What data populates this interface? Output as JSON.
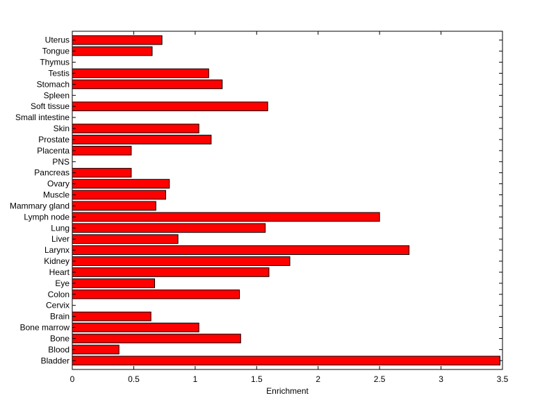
{
  "chart_data": {
    "type": "bar",
    "orientation": "horizontal",
    "categories": [
      "Bladder",
      "Blood",
      "Bone",
      "Bone marrow",
      "Brain",
      "Cervix",
      "Colon",
      "Eye",
      "Heart",
      "Kidney",
      "Larynx",
      "Liver",
      "Lung",
      "Lymph node",
      "Mammary gland",
      "Muscle",
      "Ovary",
      "Pancreas",
      "PNS",
      "Placenta",
      "Prostate",
      "Skin",
      "Small intestine",
      "Soft tissue",
      "Spleen",
      "Stomach",
      "Testis",
      "Thymus",
      "Tongue",
      "Uterus"
    ],
    "values": [
      3.48,
      0.38,
      1.37,
      1.03,
      0.64,
      0,
      1.36,
      0.67,
      1.6,
      1.77,
      2.74,
      0.86,
      1.57,
      2.5,
      0.68,
      0.76,
      0.79,
      0.48,
      0,
      0.48,
      1.13,
      1.03,
      0,
      1.59,
      0,
      1.22,
      1.11,
      0,
      0.65,
      0.73
    ],
    "xlabel": "Enrichment",
    "xlim": [
      0,
      3.5
    ],
    "xticks": [
      0,
      0.5,
      1,
      1.5,
      2,
      2.5,
      3,
      3.5
    ],
    "xtick_labels": [
      "0",
      "0.5",
      "1",
      "1.5",
      "2",
      "2.5",
      "3",
      "3.5"
    ],
    "grid": false,
    "bar_color": "#ff0000",
    "edge_color": "#000000"
  }
}
